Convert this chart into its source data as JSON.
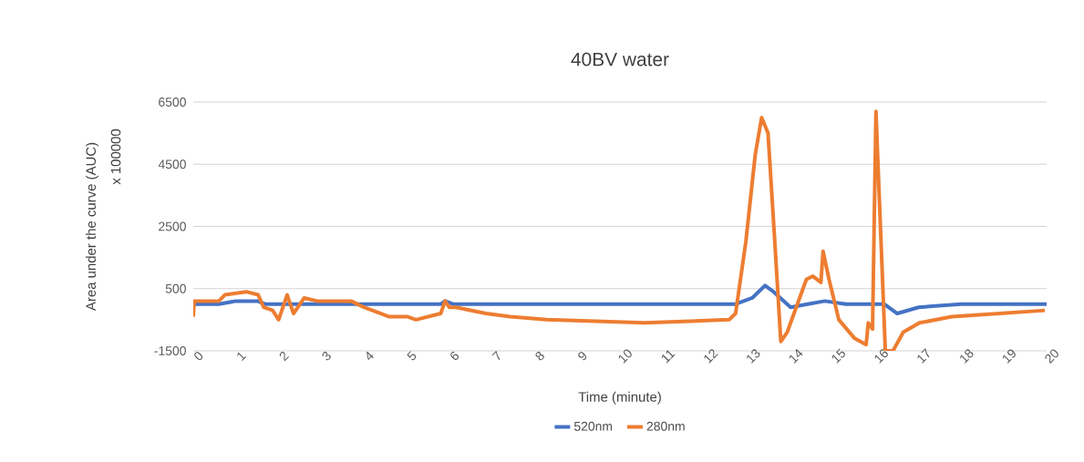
{
  "chart_data": {
    "type": "line",
    "title": "40BV water",
    "xlabel": "Time (minute)",
    "ylabel": "Area under the curve (AUC)",
    "annotations": [
      "x 100000"
    ],
    "xlim": [
      0,
      20
    ],
    "ylim": [
      -1500,
      6500
    ],
    "xticks": [
      0,
      1,
      2,
      3,
      4,
      5,
      6,
      7,
      8,
      9,
      10,
      11,
      12,
      13,
      14,
      15,
      16,
      17,
      18,
      19,
      20
    ],
    "yticks": [
      -1500,
      500,
      2500,
      4500,
      6500
    ],
    "grid": "y",
    "legend": "bottom",
    "series": [
      {
        "name": "520nm",
        "color": "#4472c4",
        "x": [
          0,
          0.6,
          1.0,
          1.5,
          1.7,
          2.5,
          4.0,
          5.0,
          5.8,
          5.9,
          6.1,
          7.0,
          8.0,
          10.0,
          12.7,
          13.1,
          13.4,
          13.6,
          14.0,
          14.4,
          14.8,
          15.3,
          16.0,
          16.2,
          16.5,
          17.0,
          18.0,
          19.0,
          20.0
        ],
        "values": [
          0,
          0,
          100,
          100,
          0,
          0,
          0,
          0,
          0,
          100,
          0,
          0,
          0,
          0,
          0,
          200,
          600,
          400,
          -100,
          0,
          100,
          0,
          0,
          0,
          -300,
          -100,
          0,
          0,
          0
        ]
      },
      {
        "name": "280nm",
        "color": "#ed7d31",
        "x": [
          0,
          0.02,
          0.6,
          0.74,
          1.24,
          1.52,
          1.65,
          1.86,
          2.0,
          2.2,
          2.35,
          2.6,
          2.9,
          3.7,
          4.0,
          4.58,
          5.01,
          5.22,
          5.8,
          5.9,
          6.0,
          6.15,
          6.86,
          7.43,
          8.28,
          10.58,
          12.56,
          12.71,
          12.95,
          13.17,
          13.32,
          13.47,
          13.62,
          13.77,
          13.92,
          14.37,
          14.52,
          14.71,
          14.76,
          14.9,
          15.13,
          15.5,
          15.77,
          15.82,
          15.92,
          16.0,
          16.07,
          16.22,
          16.4,
          16.64,
          17.02,
          17.78,
          18.9,
          19.96
        ],
        "values": [
          -400,
          100,
          100,
          300,
          400,
          300,
          -100,
          -200,
          -500,
          300,
          -300,
          200,
          100,
          100,
          -100,
          -400,
          -400,
          -500,
          -300,
          100,
          -100,
          -100,
          -300,
          -400,
          -500,
          -600,
          -500,
          -300,
          2000,
          4800,
          6000,
          5500,
          2200,
          -1200,
          -900,
          800,
          900,
          700,
          1700,
          800,
          -500,
          -1100,
          -1300,
          -600,
          -800,
          6200,
          3700,
          -1500,
          -1500,
          -900,
          -600,
          -400,
          -300,
          -200
        ]
      }
    ]
  }
}
